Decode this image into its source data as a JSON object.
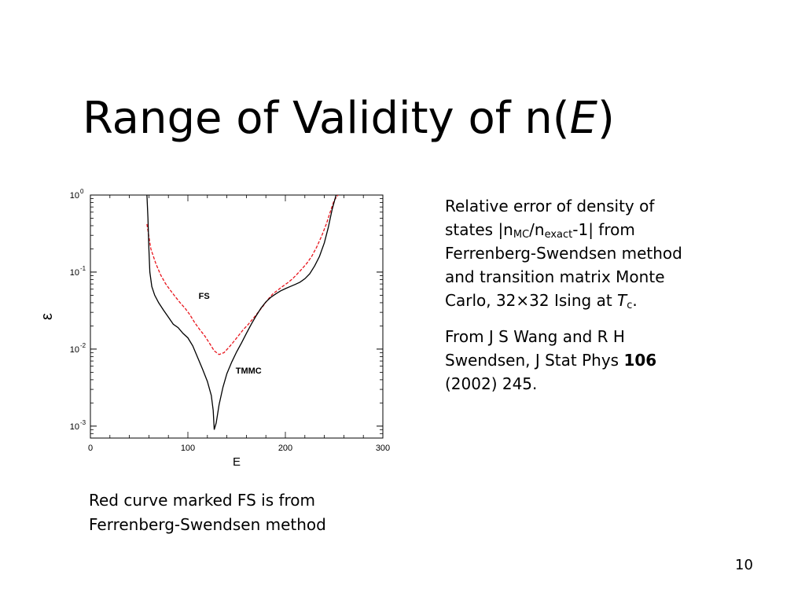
{
  "slide": {
    "title_prefix": "Range of Validity of n(",
    "title_var": "E",
    "title_suffix": ")",
    "page_number": "10"
  },
  "description": {
    "p1": {
      "t1": "Relative error of density of states |n",
      "sub1": "MC",
      "t2": "/n",
      "sub2": "exact",
      "t3": "-1| from Ferrenberg-Swendsen method and transition matrix Monte Carlo, 32×32 Ising at ",
      "t_var": "T",
      "sub3": "c",
      "t4": "."
    },
    "p2": {
      "t1": "From J S Wang and R H Swendsen, J Stat Phys ",
      "bold": "106",
      "t2": " (2002) 245."
    }
  },
  "caption": "Red curve marked FS is from Ferrenberg-Swendsen method",
  "colors": {
    "fs": "#e8141c",
    "tmmc": "#000000"
  },
  "chart_data": {
    "type": "line",
    "xlabel": "E",
    "ylabel": "ε",
    "xlim": [
      0,
      300
    ],
    "ylim": [
      0.0007,
      1
    ],
    "yscale": "log",
    "x_ticks": [
      "0",
      "100",
      "200",
      "300"
    ],
    "y_ticks": [
      {
        "base": "10",
        "exp": "0"
      },
      {
        "base": "10",
        "exp": "-1"
      },
      {
        "base": "10",
        "exp": "-2"
      },
      {
        "base": "10",
        "exp": "-3"
      }
    ],
    "annotations": [
      "FS",
      "TMMC"
    ],
    "series": [
      {
        "name": "FS",
        "style": "dashed",
        "x": [
          58,
          62,
          67,
          72,
          77,
          82,
          87,
          92,
          97,
          102,
          107,
          112,
          117,
          122,
          127,
          132,
          137,
          142,
          147,
          152,
          157,
          162,
          167,
          172,
          177,
          182,
          187,
          192,
          197,
          202,
          207,
          212,
          217,
          222,
          227,
          232,
          237,
          242,
          246,
          250,
          254
        ],
        "y": [
          0.42,
          0.2,
          0.13,
          0.092,
          0.071,
          0.058,
          0.048,
          0.04,
          0.034,
          0.028,
          0.022,
          0.018,
          0.015,
          0.012,
          0.0095,
          0.0085,
          0.009,
          0.0105,
          0.0125,
          0.015,
          0.018,
          0.021,
          0.025,
          0.03,
          0.036,
          0.044,
          0.052,
          0.058,
          0.065,
          0.072,
          0.081,
          0.094,
          0.11,
          0.13,
          0.16,
          0.21,
          0.29,
          0.42,
          0.6,
          0.85,
          1.0
        ]
      },
      {
        "name": "TMMC",
        "style": "solid",
        "x": [
          58,
          59,
          60,
          61,
          63,
          66,
          70,
          75,
          80,
          85,
          90,
          95,
          100,
          105,
          110,
          115,
          120,
          124,
          126,
          127,
          129,
          132,
          136,
          140,
          145,
          150,
          155,
          160,
          165,
          170,
          175,
          180,
          185,
          190,
          195,
          200,
          205,
          210,
          215,
          220,
          225,
          230,
          235,
          240,
          244,
          248,
          252
        ],
        "y": [
          1.0,
          0.5,
          0.2,
          0.1,
          0.065,
          0.05,
          0.04,
          0.032,
          0.026,
          0.021,
          0.019,
          0.016,
          0.014,
          0.011,
          0.0078,
          0.0055,
          0.0038,
          0.0025,
          0.0016,
          0.0009,
          0.0011,
          0.0019,
          0.0032,
          0.0048,
          0.0068,
          0.0092,
          0.012,
          0.016,
          0.021,
          0.027,
          0.034,
          0.041,
          0.047,
          0.052,
          0.057,
          0.061,
          0.065,
          0.069,
          0.074,
          0.082,
          0.095,
          0.12,
          0.16,
          0.24,
          0.38,
          0.65,
          1.0
        ]
      }
    ]
  }
}
